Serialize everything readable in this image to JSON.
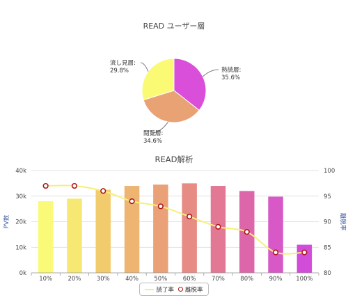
{
  "chart_data": [
    {
      "type": "pie",
      "title": "READ ユーザー層",
      "slices": [
        {
          "label": "熟読層",
          "value": 35.6,
          "value_label": "35.6%",
          "color": "#d94fd9"
        },
        {
          "label": "閲覧層",
          "value": 34.6,
          "value_label": "34.6%",
          "color": "#e8a274"
        },
        {
          "label": "流し見層",
          "value": 29.8,
          "value_label": "29.8%",
          "color": "#fafa75"
        }
      ]
    },
    {
      "type": "bar",
      "title": "READ解析",
      "categories": [
        "10%",
        "20%",
        "30%",
        "40%",
        "50%",
        "60%",
        "70%",
        "80%",
        "90%",
        "100%"
      ],
      "series": [
        {
          "name": "読了率",
          "axis": "left",
          "type": "bar",
          "values": [
            28000,
            29000,
            32500,
            34000,
            34500,
            35000,
            34000,
            32000,
            29800,
            11000
          ],
          "colors": [
            "#fafa78",
            "#f7e873",
            "#f2cc6c",
            "#eeb472",
            "#eaa178",
            "#e68c84",
            "#e27894",
            "#dd66aa",
            "#d758c6",
            "#d14cd8"
          ]
        },
        {
          "name": "離脱率",
          "axis": "right",
          "type": "line",
          "values": [
            97,
            97,
            96,
            94,
            93,
            91,
            89,
            88,
            84,
            84
          ],
          "line_color": "#f5f07a",
          "marker_color": "#b01515"
        }
      ],
      "ylabel_left": "PV数",
      "ylabel_right": "離脱率",
      "yticks_left": [
        "0k",
        "10k",
        "20k",
        "30k",
        "40k"
      ],
      "yticks_right": [
        "80",
        "85",
        "90",
        "95",
        "100"
      ],
      "ylim_left": [
        0,
        40000
      ],
      "ylim_right": [
        80,
        100
      ],
      "grid": true,
      "legend": "bottom-center"
    }
  ]
}
